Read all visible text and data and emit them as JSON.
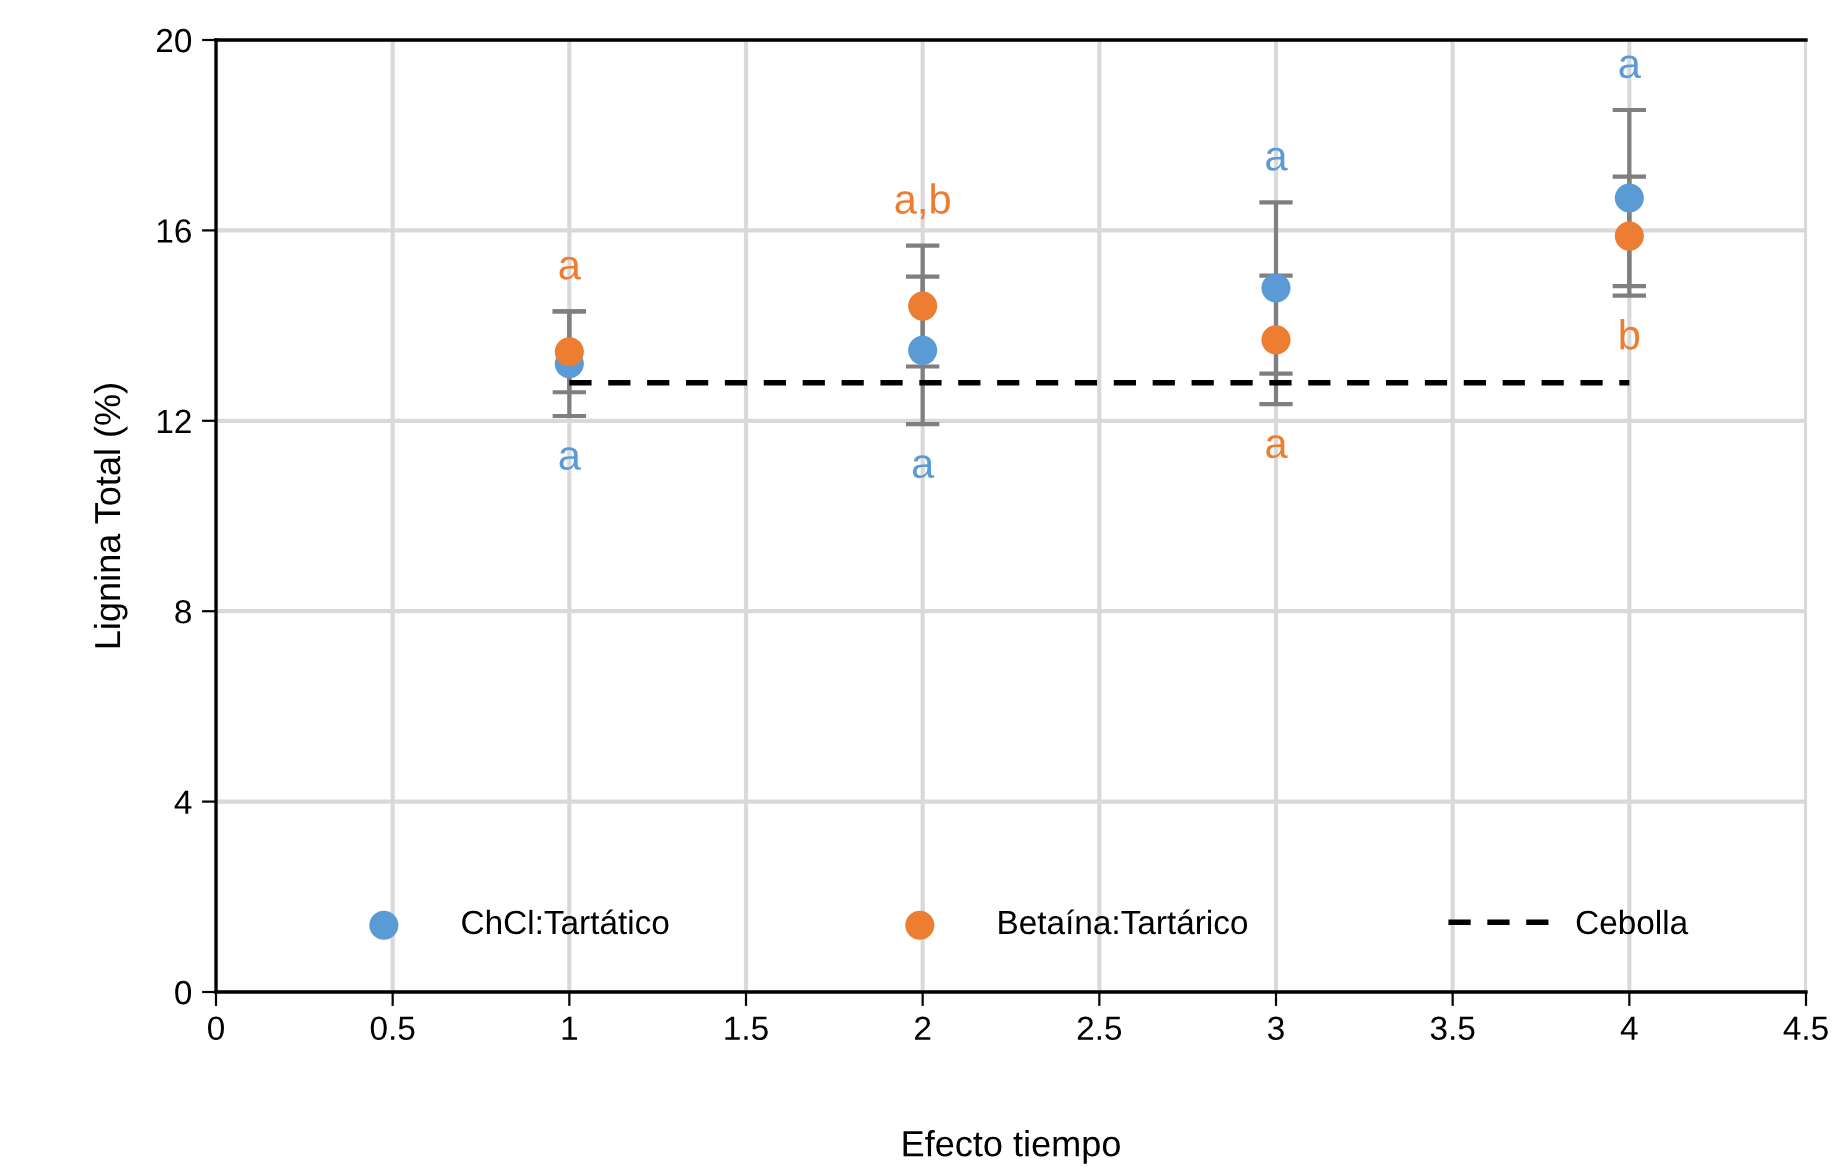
{
  "chart_data": {
    "type": "scatter",
    "xlabel": "Efecto tiempo",
    "ylabel": "Lignina Total (%)",
    "xlim": [
      0,
      4.5
    ],
    "xticks": [
      0,
      0.5,
      1,
      1.5,
      2,
      2.5,
      3,
      3.5,
      4,
      4.5
    ],
    "ylim": [
      0,
      20
    ],
    "yticks": [
      0,
      4,
      8,
      12,
      16,
      20
    ],
    "grid": true,
    "legend": "bottom",
    "marker": "circle",
    "series": [
      {
        "name": "ChCl:Tartático",
        "color": "#5b9bd5",
        "x": [
          1,
          2,
          3,
          4
        ],
        "values": [
          13.2,
          13.48,
          14.79,
          16.68
        ],
        "errors": [
          1.1,
          1.55,
          1.8,
          1.85
        ],
        "value_labels": [
          "a",
          "a",
          "a",
          "a"
        ]
      },
      {
        "name": "Betaína:Tartárico",
        "color": "#ed7d31",
        "x": [
          1,
          2,
          3,
          4
        ],
        "values": [
          13.45,
          14.41,
          13.7,
          15.88
        ],
        "errors": [
          0.85,
          1.27,
          1.35,
          1.25
        ],
        "value_labels": [
          "a",
          "a,b",
          "a",
          "b"
        ]
      },
      {
        "name": "Cebolla",
        "type": "line",
        "line_style": "dashed",
        "marker": "none",
        "color": "#000000",
        "x": [
          1,
          4
        ],
        "values": [
          12.8,
          12.8
        ]
      }
    ]
  }
}
